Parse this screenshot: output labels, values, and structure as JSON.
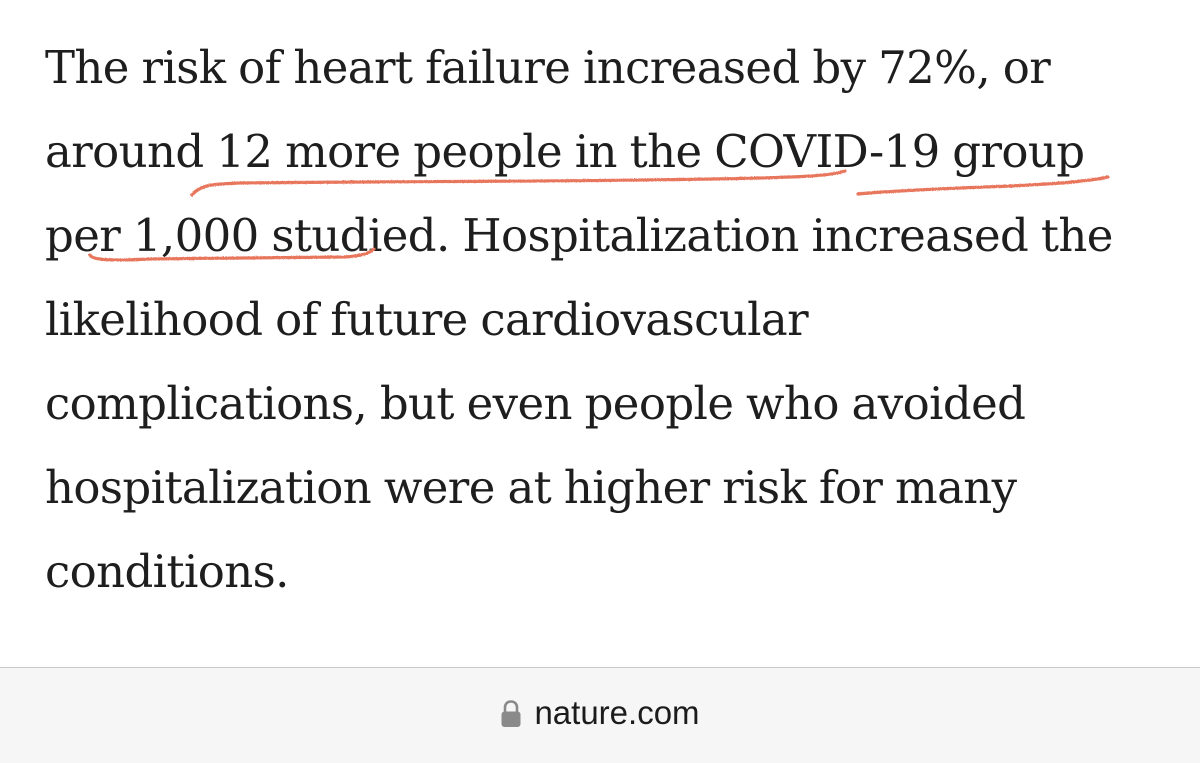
{
  "article": {
    "lines": [
      "The risk of heart failure increased by 72%, or",
      "around 12 more people in the COVID-19 group",
      "per 1,000 studied. Hospitalization increased the",
      "likelihood of future cardiovascular",
      "complications, but even people who avoided",
      "hospitalization were at higher risk for many",
      "conditions."
    ]
  },
  "annotation": {
    "underline_color": "#e8765c",
    "underlined_phrase": "12 more people in the COVID-19 group per 1,000 studied"
  },
  "address_bar": {
    "lock_icon": "lock-icon",
    "url": "nature.com"
  }
}
